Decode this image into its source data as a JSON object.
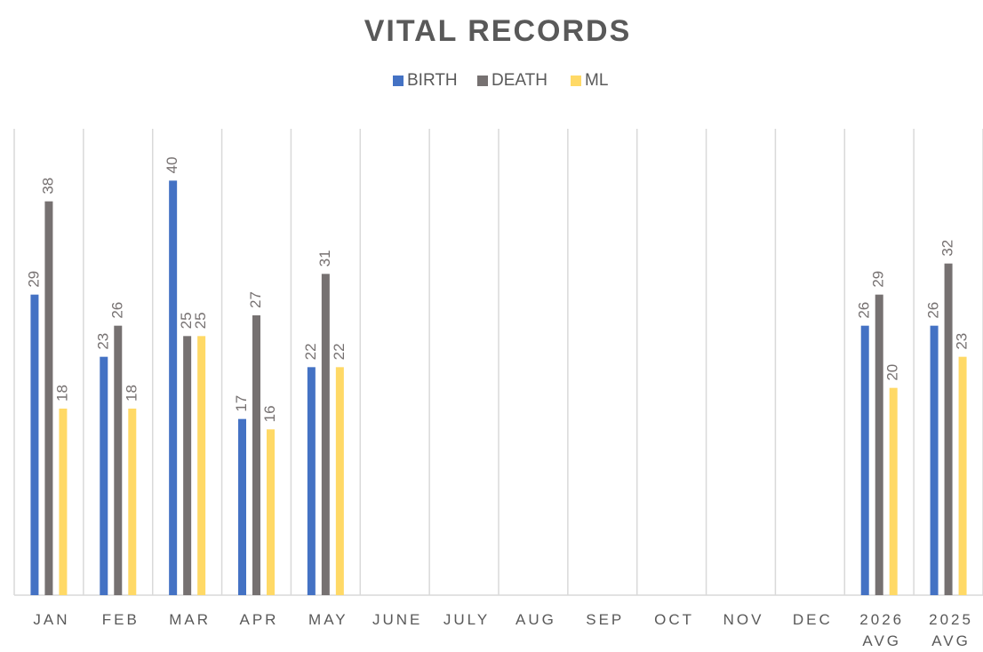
{
  "chart_data": {
    "type": "bar",
    "title": "VITAL RECORDS",
    "categories": [
      "JAN",
      "FEB",
      "MAR",
      "APR",
      "MAY",
      "JUNE",
      "JULY",
      "AUG",
      "SEP",
      "OCT",
      "NOV",
      "DEC",
      "2026 AVG",
      "2025 AVG"
    ],
    "series": [
      {
        "name": "BIRTH",
        "color": "#4472c4",
        "values": [
          29,
          23,
          40,
          17,
          22,
          null,
          null,
          null,
          null,
          null,
          null,
          null,
          26,
          26
        ]
      },
      {
        "name": "DEATH",
        "color": "#767171",
        "values": [
          38,
          26,
          25,
          27,
          31,
          null,
          null,
          null,
          null,
          null,
          null,
          null,
          29,
          32
        ]
      },
      {
        "name": "ML",
        "color": "#ffd966",
        "values": [
          18,
          18,
          25,
          16,
          22,
          null,
          null,
          null,
          null,
          null,
          null,
          null,
          20,
          23
        ]
      }
    ],
    "ylim": [
      0,
      45
    ],
    "legend": "top"
  }
}
